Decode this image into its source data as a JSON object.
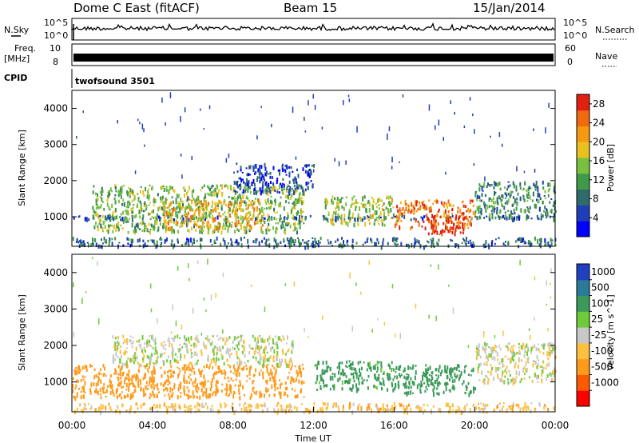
{
  "header": {
    "title": "Dome C East (fitACF)",
    "beam": "Beam 15",
    "date": "15/Jan/2014"
  },
  "strip_labels": {
    "nsky": "N.Sky",
    "nsky_top": "10^5",
    "nsky_bottom": "10^0",
    "nsearch": "N.Search",
    "nsearch_top": "10^5",
    "nsearch_bottom": "10^0",
    "freq_line1": "Freq.",
    "freq_line2": "[MHz]",
    "freq_top": "10",
    "freq_bottom": "8",
    "nave": "Nave",
    "nave_top": "60",
    "nave_bottom": "0",
    "cpid": "CPID",
    "cpid_value": "twofsound 3501"
  },
  "colors": {
    "power_scale": [
      "#0000ff",
      "#1f3fb8",
      "#2f6b6a",
      "#3f9a4a",
      "#7ac040",
      "#e8c020",
      "#f59a10",
      "#f06a10",
      "#e02010"
    ],
    "velocity_scale": [
      "#ff0000",
      "#ff5a00",
      "#ff9a1a",
      "#ffc040",
      "#c8c8c8",
      "#6ecc3a",
      "#3b9a5a",
      "#2a7a9a",
      "#2040c0"
    ]
  },
  "chart_data": [
    {
      "type": "heatmap",
      "panel": "power",
      "ylabel": "Slant Range [km]",
      "xlim": [
        "00:00",
        "24:00"
      ],
      "ylim": [
        180,
        4500
      ],
      "y_ticks": [
        1000,
        2000,
        3000,
        4000
      ],
      "colorbar_label": "Power [dB]",
      "colorbar_ticks": [
        4,
        8,
        12,
        16,
        20,
        24,
        28
      ],
      "colorbar_range": [
        0,
        30
      ],
      "bands": [
        {
          "start_h": 0.0,
          "end_h": 24.0,
          "range_lo": 950,
          "range_hi": 1050,
          "value": 6
        },
        {
          "start_h": 1.0,
          "end_h": 11.5,
          "range_lo": 600,
          "range_hi": 1900,
          "value": 14
        },
        {
          "start_h": 4.5,
          "end_h": 9.5,
          "range_lo": 700,
          "range_hi": 1500,
          "value": 20
        },
        {
          "start_h": 8.0,
          "end_h": 12.0,
          "range_lo": 1700,
          "range_hi": 2500,
          "value": 5
        },
        {
          "start_h": 12.5,
          "end_h": 16.0,
          "range_lo": 800,
          "range_hi": 1600,
          "value": 16
        },
        {
          "start_h": 16.0,
          "end_h": 20.0,
          "range_lo": 700,
          "range_hi": 1500,
          "value": 24
        },
        {
          "start_h": 17.5,
          "end_h": 19.5,
          "range_lo": 500,
          "range_hi": 1100,
          "value": 28
        },
        {
          "start_h": 20.0,
          "end_h": 24.0,
          "range_lo": 1000,
          "range_hi": 2000,
          "value": 10
        },
        {
          "start_h": 0.0,
          "end_h": 24.0,
          "range_lo": 200,
          "range_hi": 450,
          "value": 8
        }
      ]
    },
    {
      "type": "heatmap",
      "panel": "velocity",
      "ylabel": "Slant Range [km]",
      "xlabel": "Time UT",
      "xlim": [
        "00:00",
        "24:00"
      ],
      "x_ticks": [
        "00:00",
        "04:00",
        "08:00",
        "12:00",
        "16:00",
        "20:00",
        "00:00"
      ],
      "ylim": [
        180,
        4500
      ],
      "y_ticks": [
        1000,
        2000,
        3000,
        4000
      ],
      "colorbar_label": "Velocity [m s^-1]",
      "colorbar_ticks": [
        "1000",
        "500",
        "100",
        "25",
        "-25",
        "-100",
        "-500",
        "-1000"
      ],
      "bands": [
        {
          "start_h": 0.0,
          "end_h": 11.5,
          "range_lo": 600,
          "range_hi": 1500,
          "value": -300
        },
        {
          "start_h": 2.0,
          "end_h": 11.0,
          "range_lo": 1500,
          "range_hi": 2300,
          "value": 0
        },
        {
          "start_h": 12.0,
          "end_h": 16.0,
          "range_lo": 800,
          "range_hi": 1600,
          "value": 150
        },
        {
          "start_h": 16.0,
          "end_h": 20.0,
          "range_lo": 700,
          "range_hi": 1500,
          "value": 400
        },
        {
          "start_h": 20.0,
          "end_h": 24.0,
          "range_lo": 1000,
          "range_hi": 2100,
          "value": 0
        },
        {
          "start_h": 0.0,
          "end_h": 24.0,
          "range_lo": 200,
          "range_hi": 450,
          "value": -60
        }
      ]
    }
  ]
}
